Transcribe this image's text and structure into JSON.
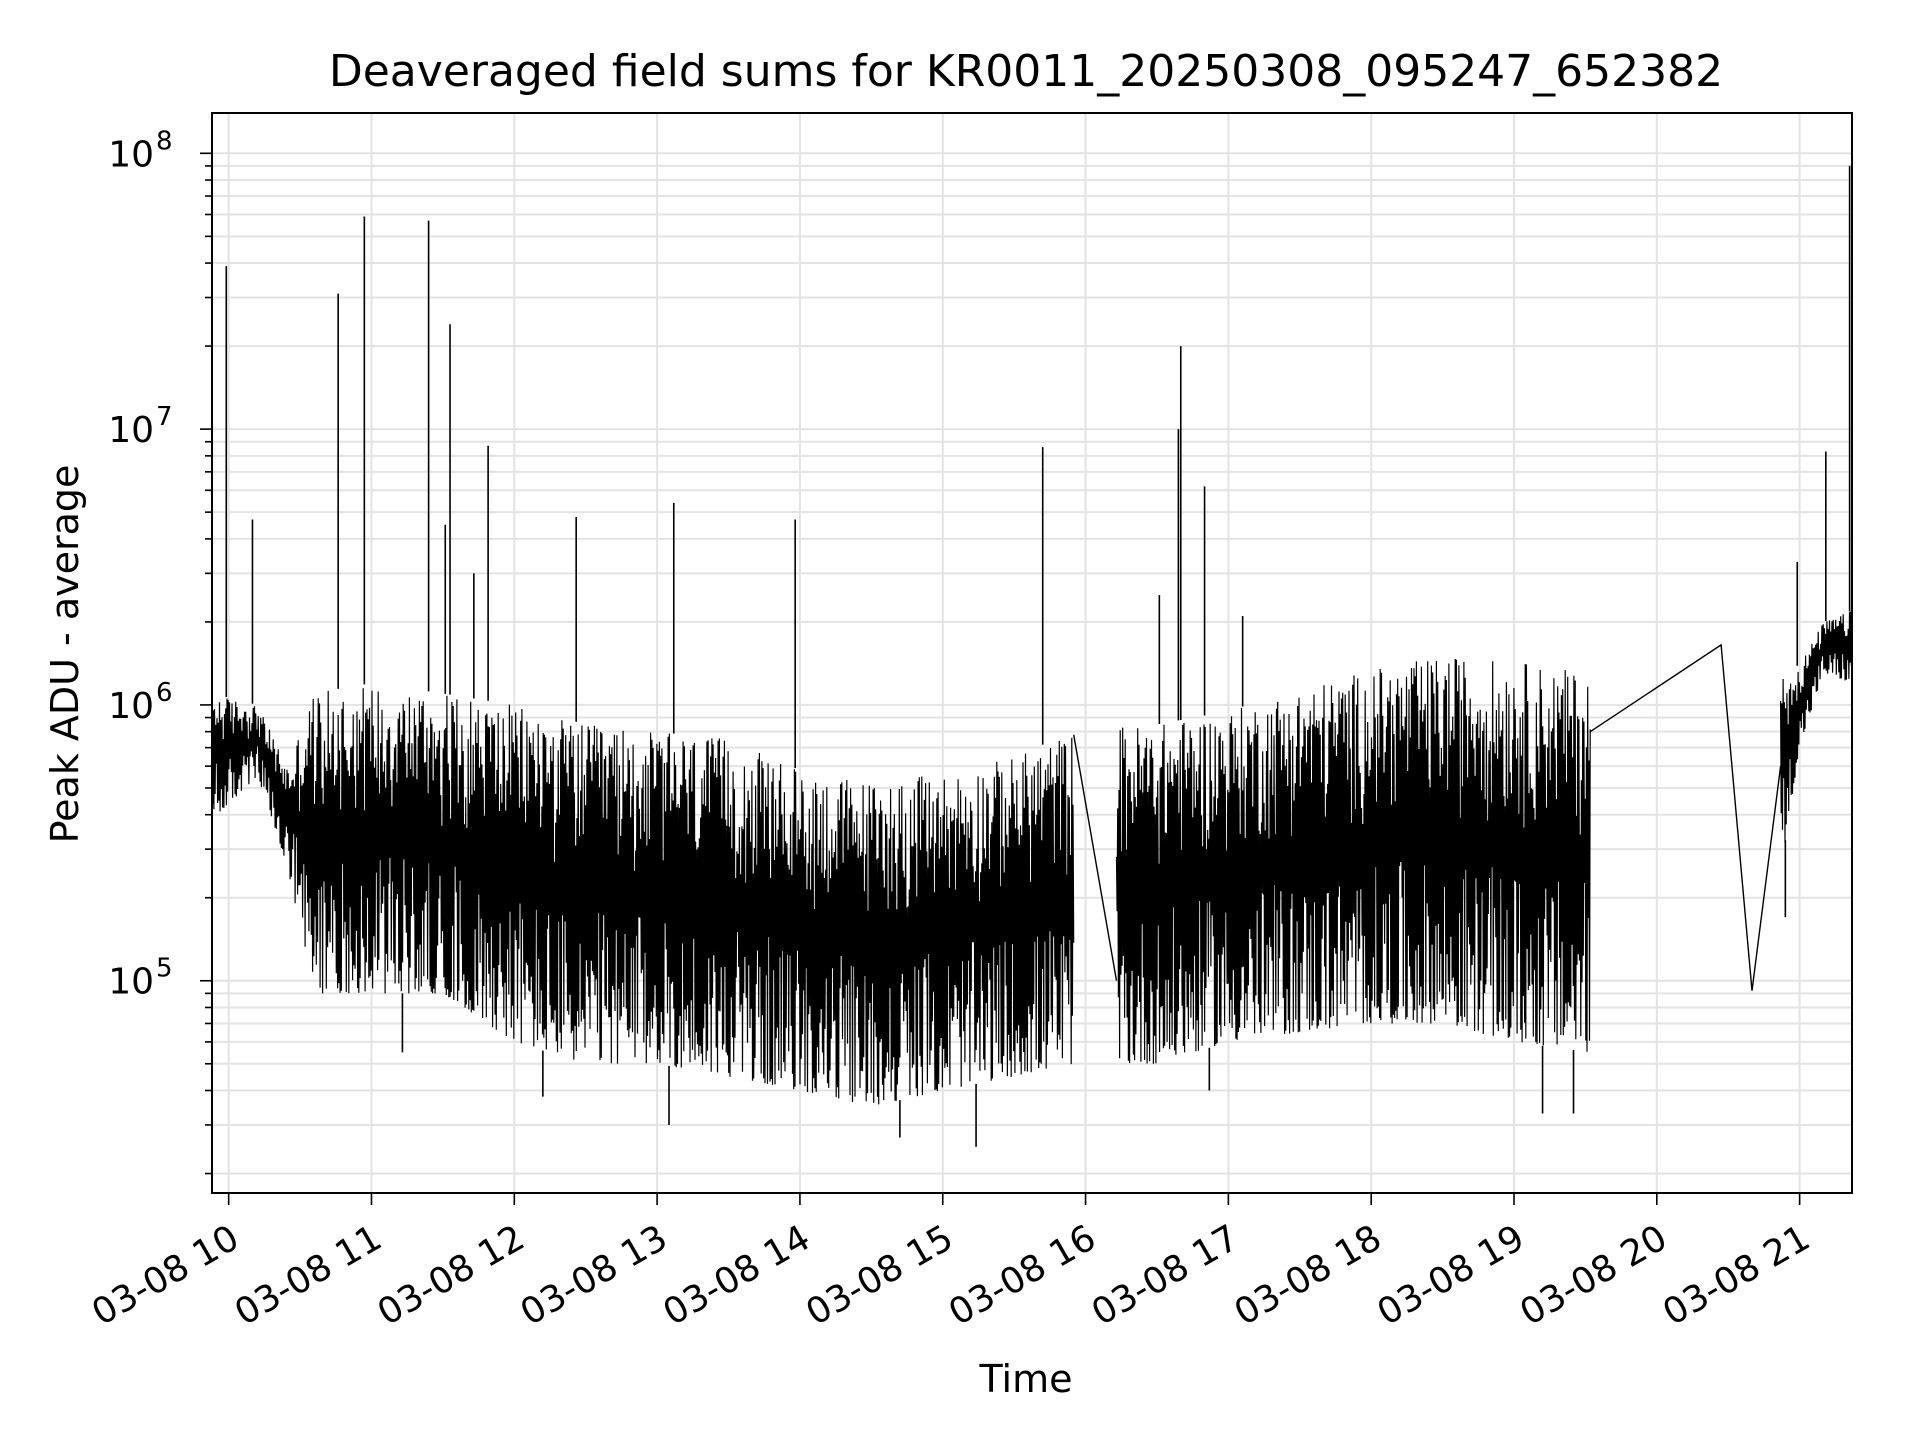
{
  "chart_data": {
    "type": "line",
    "title": "Deaveraged field sums for KR0011_20250308_095247_652382",
    "xlabel": "Time",
    "ylabel": "Peak ADU - average",
    "yscale": "log",
    "xlim": [
      "2025-03-08 09:53",
      "2025-03-08 21:22"
    ],
    "ylim": [
      17000,
      140000000
    ],
    "grid": true,
    "line_color": "#000000",
    "x_ticks": [
      {
        "time": "2025-03-08 10:00",
        "label": "03-08 10"
      },
      {
        "time": "2025-03-08 11:00",
        "label": "03-08 11"
      },
      {
        "time": "2025-03-08 12:00",
        "label": "03-08 12"
      },
      {
        "time": "2025-03-08 13:00",
        "label": "03-08 13"
      },
      {
        "time": "2025-03-08 14:00",
        "label": "03-08 14"
      },
      {
        "time": "2025-03-08 15:00",
        "label": "03-08 15"
      },
      {
        "time": "2025-03-08 16:00",
        "label": "03-08 16"
      },
      {
        "time": "2025-03-08 17:00",
        "label": "03-08 17"
      },
      {
        "time": "2025-03-08 18:00",
        "label": "03-08 18"
      },
      {
        "time": "2025-03-08 19:00",
        "label": "03-08 19"
      },
      {
        "time": "2025-03-08 20:00",
        "label": "03-08 20"
      },
      {
        "time": "2025-03-08 21:00",
        "label": "03-08 21"
      }
    ],
    "y_ticks": [
      {
        "value": 100000,
        "base": "10",
        "exp": "5"
      },
      {
        "value": 1000000,
        "base": "10",
        "exp": "6"
      },
      {
        "value": 10000000,
        "base": "10",
        "exp": "7"
      },
      {
        "value": 100000000,
        "base": "10",
        "exp": "8"
      }
    ],
    "series": [
      {
        "segments": [
          {
            "start": "2025-03-08 09:53",
            "end": "2025-03-08 15:55",
            "band": [
              {
                "time": "2025-03-08 09:53",
                "low": 380000,
                "high": 1100000
              },
              {
                "time": "2025-03-08 10:12",
                "low": 550000,
                "high": 1000000
              },
              {
                "time": "2025-03-08 10:25",
                "low": 250000,
                "high": 600000
              },
              {
                "time": "2025-03-08 10:35",
                "low": 90000,
                "high": 1100000
              },
              {
                "time": "2025-03-08 11:00",
                "low": 90000,
                "high": 1200000
              },
              {
                "time": "2025-03-08 11:30",
                "low": 90000,
                "high": 1100000
              },
              {
                "time": "2025-03-08 12:00",
                "low": 60000,
                "high": 1000000
              },
              {
                "time": "2025-03-08 12:30",
                "low": 50000,
                "high": 850000
              },
              {
                "time": "2025-03-08 13:00",
                "low": 50000,
                "high": 800000
              },
              {
                "time": "2025-03-08 13:30",
                "low": 45000,
                "high": 750000
              },
              {
                "time": "2025-03-08 14:00",
                "low": 40000,
                "high": 580000
              },
              {
                "time": "2025-03-08 14:30",
                "low": 35000,
                "high": 530000
              },
              {
                "time": "2025-03-08 15:00",
                "low": 40000,
                "high": 560000
              },
              {
                "time": "2025-03-08 15:30",
                "low": 45000,
                "high": 650000
              },
              {
                "time": "2025-03-08 15:55",
                "low": 50000,
                "high": 800000
              }
            ],
            "spikes": [
              {
                "time": "2025-03-08 09:59",
                "value": 39000000
              },
              {
                "time": "2025-03-08 10:10",
                "value": 4700000
              },
              {
                "time": "2025-03-08 10:46",
                "value": 31000000
              },
              {
                "time": "2025-03-08 10:57",
                "value": 59000000
              },
              {
                "time": "2025-03-08 11:24",
                "value": 57000000
              },
              {
                "time": "2025-03-08 11:31",
                "value": 4500000
              },
              {
                "time": "2025-03-08 11:33",
                "value": 24000000
              },
              {
                "time": "2025-03-08 11:43",
                "value": 3000000
              },
              {
                "time": "2025-03-08 11:49",
                "value": 8700000
              },
              {
                "time": "2025-03-08 12:26",
                "value": 4800000
              },
              {
                "time": "2025-03-08 13:07",
                "value": 5400000
              },
              {
                "time": "2025-03-08 13:58",
                "value": 4700000
              },
              {
                "time": "2025-03-08 15:42",
                "value": 8600000
              }
            ],
            "dips": [
              {
                "time": "2025-03-08 11:13",
                "value": 55000
              },
              {
                "time": "2025-03-08 12:12",
                "value": 38000
              },
              {
                "time": "2025-03-08 13:05",
                "value": 30000
              },
              {
                "time": "2025-03-08 14:42",
                "value": 27000
              },
              {
                "time": "2025-03-08 15:14",
                "value": 25000
              }
            ]
          },
          {
            "start": "2025-03-08 15:55",
            "end": "2025-03-08 16:13",
            "gap_line": [
              {
                "time": "2025-03-08 15:55",
                "value": 780000
              },
              {
                "time": "2025-03-08 16:13",
                "value": 100000
              }
            ]
          },
          {
            "start": "2025-03-08 16:13",
            "end": "2025-03-08 19:32",
            "band": [
              {
                "time": "2025-03-08 16:13",
                "low": 50000,
                "high": 850000
              },
              {
                "time": "2025-03-08 16:30",
                "low": 50000,
                "high": 850000
              },
              {
                "time": "2025-03-08 17:00",
                "low": 60000,
                "high": 950000
              },
              {
                "time": "2025-03-08 17:30",
                "low": 65000,
                "high": 1150000
              },
              {
                "time": "2025-03-08 18:00",
                "low": 70000,
                "high": 1350000
              },
              {
                "time": "2025-03-08 18:30",
                "low": 70000,
                "high": 1500000
              },
              {
                "time": "2025-03-08 19:00",
                "low": 60000,
                "high": 1450000
              },
              {
                "time": "2025-03-08 19:32",
                "low": 55000,
                "high": 1300000
              }
            ],
            "spikes": [
              {
                "time": "2025-03-08 16:31",
                "value": 2500000
              },
              {
                "time": "2025-03-08 16:39",
                "value": 10000000
              },
              {
                "time": "2025-03-08 16:40",
                "value": 20000000
              },
              {
                "time": "2025-03-08 16:50",
                "value": 6200000
              },
              {
                "time": "2025-03-08 17:06",
                "value": 2100000
              }
            ],
            "dips": [
              {
                "time": "2025-03-08 16:52",
                "value": 40000
              },
              {
                "time": "2025-03-08 19:12",
                "value": 33000
              },
              {
                "time": "2025-03-08 19:25",
                "value": 33000
              }
            ]
          },
          {
            "start": "2025-03-08 19:32",
            "end": "2025-03-08 20:52",
            "gap_line": [
              {
                "time": "2025-03-08 19:32",
                "value": 800000
              },
              {
                "time": "2025-03-08 20:27",
                "value": 1650000
              },
              {
                "time": "2025-03-08 20:40",
                "value": 92000
              },
              {
                "time": "2025-03-08 20:52",
                "value": 600000
              }
            ]
          },
          {
            "start": "2025-03-08 20:52",
            "end": "2025-03-08 21:22",
            "band": [
              {
                "time": "2025-03-08 20:52",
                "low": 250000,
                "high": 1300000
              },
              {
                "time": "2025-03-08 21:00",
                "low": 700000,
                "high": 1400000
              },
              {
                "time": "2025-03-08 21:10",
                "low": 1300000,
                "high": 2000000
              },
              {
                "time": "2025-03-08 21:22",
                "low": 1200000,
                "high": 2200000
              }
            ],
            "spikes": [
              {
                "time": "2025-03-08 20:59",
                "value": 3300000
              },
              {
                "time": "2025-03-08 21:11",
                "value": 8300000
              },
              {
                "time": "2025-03-08 21:21",
                "value": 90000000
              }
            ],
            "dips": [
              {
                "time": "2025-03-08 20:54",
                "value": 170000
              },
              {
                "time": "2025-03-08 21:22",
                "value": 280000
              }
            ]
          }
        ]
      }
    ]
  }
}
